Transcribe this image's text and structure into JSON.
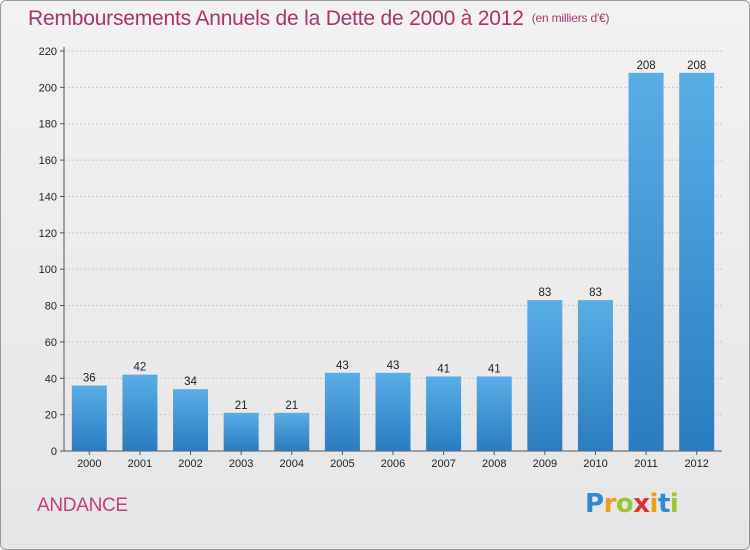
{
  "header": {
    "title": "Remboursements Annuels de la Dette de 2000 à 2012",
    "subtitle": "(en milliers d'€)"
  },
  "footer": {
    "commune": "ANDANCE",
    "logo_text": "Proxiti"
  },
  "chart_data": {
    "type": "bar",
    "title": "Remboursements Annuels de la Dette de 2000 à 2012",
    "subtitle": "(en milliers d'€)",
    "categories": [
      "2000",
      "2001",
      "2002",
      "2003",
      "2004",
      "2005",
      "2006",
      "2007",
      "2008",
      "2009",
      "2010",
      "2011",
      "2012"
    ],
    "values": [
      36,
      42,
      34,
      21,
      21,
      43,
      43,
      41,
      41,
      83,
      83,
      208,
      208
    ],
    "ylim": [
      0,
      220
    ],
    "yticks": [
      0,
      20,
      40,
      60,
      80,
      100,
      120,
      140,
      160,
      180,
      200,
      220
    ],
    "grid": true,
    "colors": {
      "bar_top": "#5aaee6",
      "bar_bottom": "#2a7cc0",
      "grid": "#c8c8c8",
      "title": "#a8356d"
    }
  }
}
